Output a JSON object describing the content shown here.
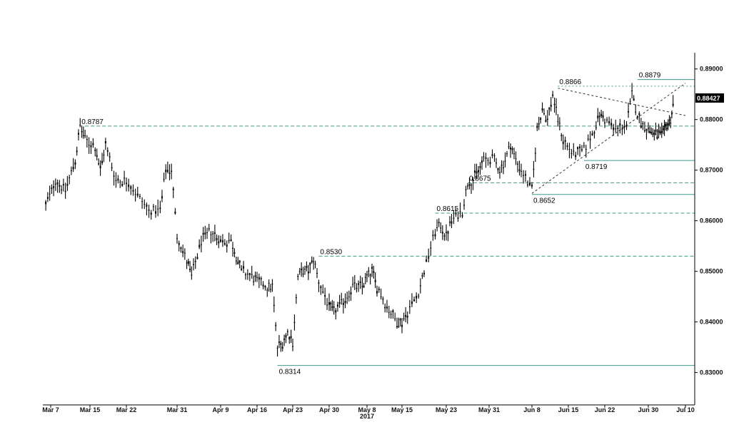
{
  "chart_data": {
    "type": "candlestick",
    "title": "",
    "xlabel": "",
    "ylabel": "",
    "year_label": "2017",
    "x_ticks": [
      "Mar 7",
      "Mar 15",
      "Mar 22",
      "Mar 31",
      "Apr 9",
      "Apr 16",
      "Apr 23",
      "Apr 30",
      "May 8",
      "May 15",
      "May 23",
      "May 31",
      "Jun 8",
      "Jun 15",
      "Jun 22",
      "Jun 30",
      "Jul 10"
    ],
    "x_tick_dates": [
      "2017-03-07",
      "2017-03-15",
      "2017-03-22",
      "2017-03-31",
      "2017-04-09",
      "2017-04-16",
      "2017-04-23",
      "2017-04-30",
      "2017-05-08",
      "2017-05-15",
      "2017-05-23",
      "2017-05-31",
      "2017-06-08",
      "2017-06-15",
      "2017-06-22",
      "2017-06-30",
      "2017-07-10"
    ],
    "y_ticks": [
      "0.83000",
      "0.84000",
      "0.85000",
      "0.86000",
      "0.87000",
      "0.88000",
      "0.89000"
    ],
    "ylim": [
      0.8236,
      0.8932
    ],
    "y_axis_side": "right",
    "last_value_label": "0.88427",
    "grid": false,
    "series": [
      {
        "values": [
          [
            "2017-03-06",
            0.863
          ],
          [
            "2017-03-08",
            0.868
          ],
          [
            "2017-03-10",
            0.866
          ],
          [
            "2017-03-12",
            0.872
          ],
          [
            "2017-03-13",
            0.8787
          ],
          [
            "2017-03-14",
            0.876
          ],
          [
            "2017-03-16",
            0.8745
          ],
          [
            "2017-03-17",
            0.87
          ],
          [
            "2017-03-18",
            0.875
          ],
          [
            "2017-03-20",
            0.868
          ],
          [
            "2017-03-22",
            0.868
          ],
          [
            "2017-03-24",
            0.865
          ],
          [
            "2017-03-26",
            0.862
          ],
          [
            "2017-03-28",
            0.862
          ],
          [
            "2017-03-29",
            0.87
          ],
          [
            "2017-03-30",
            0.87
          ],
          [
            "2017-03-31",
            0.857
          ],
          [
            "2017-04-02",
            0.852
          ],
          [
            "2017-04-03",
            0.849
          ],
          [
            "2017-04-05",
            0.856
          ],
          [
            "2017-04-07",
            0.858
          ],
          [
            "2017-04-09",
            0.856
          ],
          [
            "2017-04-11",
            0.856
          ],
          [
            "2017-04-12",
            0.853
          ],
          [
            "2017-04-13",
            0.85
          ],
          [
            "2017-04-15",
            0.849
          ],
          [
            "2017-04-16",
            0.848
          ],
          [
            "2017-04-18",
            0.847
          ],
          [
            "2017-04-19",
            0.847
          ],
          [
            "2017-04-20",
            0.835
          ],
          [
            "2017-04-21",
            0.836
          ],
          [
            "2017-04-22",
            0.838
          ],
          [
            "2017-04-23",
            0.836
          ],
          [
            "2017-04-24",
            0.849
          ],
          [
            "2017-04-25",
            0.85
          ],
          [
            "2017-04-26",
            0.85
          ],
          [
            "2017-04-27",
            0.8525
          ],
          [
            "2017-04-28",
            0.848
          ],
          [
            "2017-04-30",
            0.843
          ],
          [
            "2017-05-01",
            0.842
          ],
          [
            "2017-05-03",
            0.844
          ],
          [
            "2017-05-05",
            0.847
          ],
          [
            "2017-05-07",
            0.847
          ],
          [
            "2017-05-08",
            0.849
          ],
          [
            "2017-05-09",
            0.85
          ],
          [
            "2017-05-10",
            0.847
          ],
          [
            "2017-05-12",
            0.843
          ],
          [
            "2017-05-14",
            0.84
          ],
          [
            "2017-05-15",
            0.84
          ],
          [
            "2017-05-16",
            0.842
          ],
          [
            "2017-05-18",
            0.846
          ],
          [
            "2017-05-19",
            0.85
          ],
          [
            "2017-05-21",
            0.858
          ],
          [
            "2017-05-22",
            0.859
          ],
          [
            "2017-05-23",
            0.857
          ],
          [
            "2017-05-24",
            0.86
          ],
          [
            "2017-05-26",
            0.862
          ],
          [
            "2017-05-27",
            0.8675
          ],
          [
            "2017-05-28",
            0.868
          ],
          [
            "2017-05-29",
            0.87
          ],
          [
            "2017-05-30",
            0.872
          ],
          [
            "2017-06-01",
            0.872
          ],
          [
            "2017-06-02",
            0.87
          ],
          [
            "2017-06-03",
            0.872
          ],
          [
            "2017-06-04",
            0.875
          ],
          [
            "2017-06-05",
            0.872
          ],
          [
            "2017-06-06",
            0.87
          ],
          [
            "2017-06-08",
            0.866
          ],
          [
            "2017-06-09",
            0.878
          ],
          [
            "2017-06-10",
            0.882
          ],
          [
            "2017-06-11",
            0.88
          ],
          [
            "2017-06-12",
            0.885
          ],
          [
            "2017-06-13",
            0.88
          ],
          [
            "2017-06-14",
            0.876
          ],
          [
            "2017-06-16",
            0.873
          ],
          [
            "2017-06-18",
            0.874
          ],
          [
            "2017-06-20",
            0.878
          ],
          [
            "2017-06-21",
            0.881
          ],
          [
            "2017-06-22",
            0.88
          ],
          [
            "2017-06-24",
            0.878
          ],
          [
            "2017-06-26",
            0.879
          ],
          [
            "2017-06-27",
            0.885
          ],
          [
            "2017-06-28",
            0.881
          ],
          [
            "2017-06-29",
            0.879
          ],
          [
            "2017-06-30",
            0.878
          ],
          [
            "2017-07-02",
            0.877
          ],
          [
            "2017-07-04",
            0.877
          ],
          [
            "2017-07-05",
            0.879
          ],
          [
            "2017-07-06",
            0.88
          ],
          [
            "2017-07-07",
            0.8843
          ]
        ]
      }
    ],
    "annotations": [
      {
        "label": "0.8787",
        "date": "2017-03-13",
        "value": 0.8787
      },
      {
        "label": "0.8314",
        "date": "2017-04-20",
        "value": 0.8314
      },
      {
        "label": "0.8530",
        "date": "2017-04-28",
        "value": 0.853
      },
      {
        "label": "0.8615",
        "date": "2017-05-21",
        "value": 0.8615
      },
      {
        "label": "0.8675",
        "date": "2017-05-27",
        "value": 0.8675
      },
      {
        "label": "0.8652",
        "date": "2017-06-08",
        "value": 0.8652
      },
      {
        "label": "0.8866",
        "date": "2017-06-13",
        "value": 0.8866
      },
      {
        "label": "0.8719",
        "date": "2017-06-18",
        "value": 0.8719
      },
      {
        "label": "0.8879",
        "date": "2017-06-28",
        "value": 0.8879
      }
    ],
    "horizontal_levels": [
      {
        "value": 0.8787,
        "from": "2017-03-14",
        "style": "dashed"
      },
      {
        "value": 0.8314,
        "from": "2017-04-20",
        "style": "solid"
      },
      {
        "value": 0.853,
        "from": "2017-04-28",
        "style": "dashed"
      },
      {
        "value": 0.8615,
        "from": "2017-05-21",
        "style": "dashed"
      },
      {
        "value": 0.8675,
        "from": "2017-05-27",
        "style": "dashed"
      },
      {
        "value": 0.8652,
        "from": "2017-06-08",
        "style": "solid"
      },
      {
        "value": 0.8719,
        "from": "2017-06-18",
        "style": "solid"
      },
      {
        "value": 0.8866,
        "from": "2017-06-13",
        "style": "dotted"
      },
      {
        "value": 0.8879,
        "from": "2017-06-28",
        "style": "solid"
      }
    ],
    "trendlines": [
      {
        "from": [
          "2017-06-13",
          0.8862
        ],
        "to": [
          "2017-07-10",
          0.8808
        ]
      },
      {
        "from": [
          "2017-06-08",
          0.8654
        ],
        "to": [
          "2017-07-10",
          0.8872
        ]
      }
    ],
    "colors": {
      "candles": "#000000",
      "levels": "#3f9a8c",
      "trendlines": "#333333",
      "last_box": "#000000"
    }
  }
}
